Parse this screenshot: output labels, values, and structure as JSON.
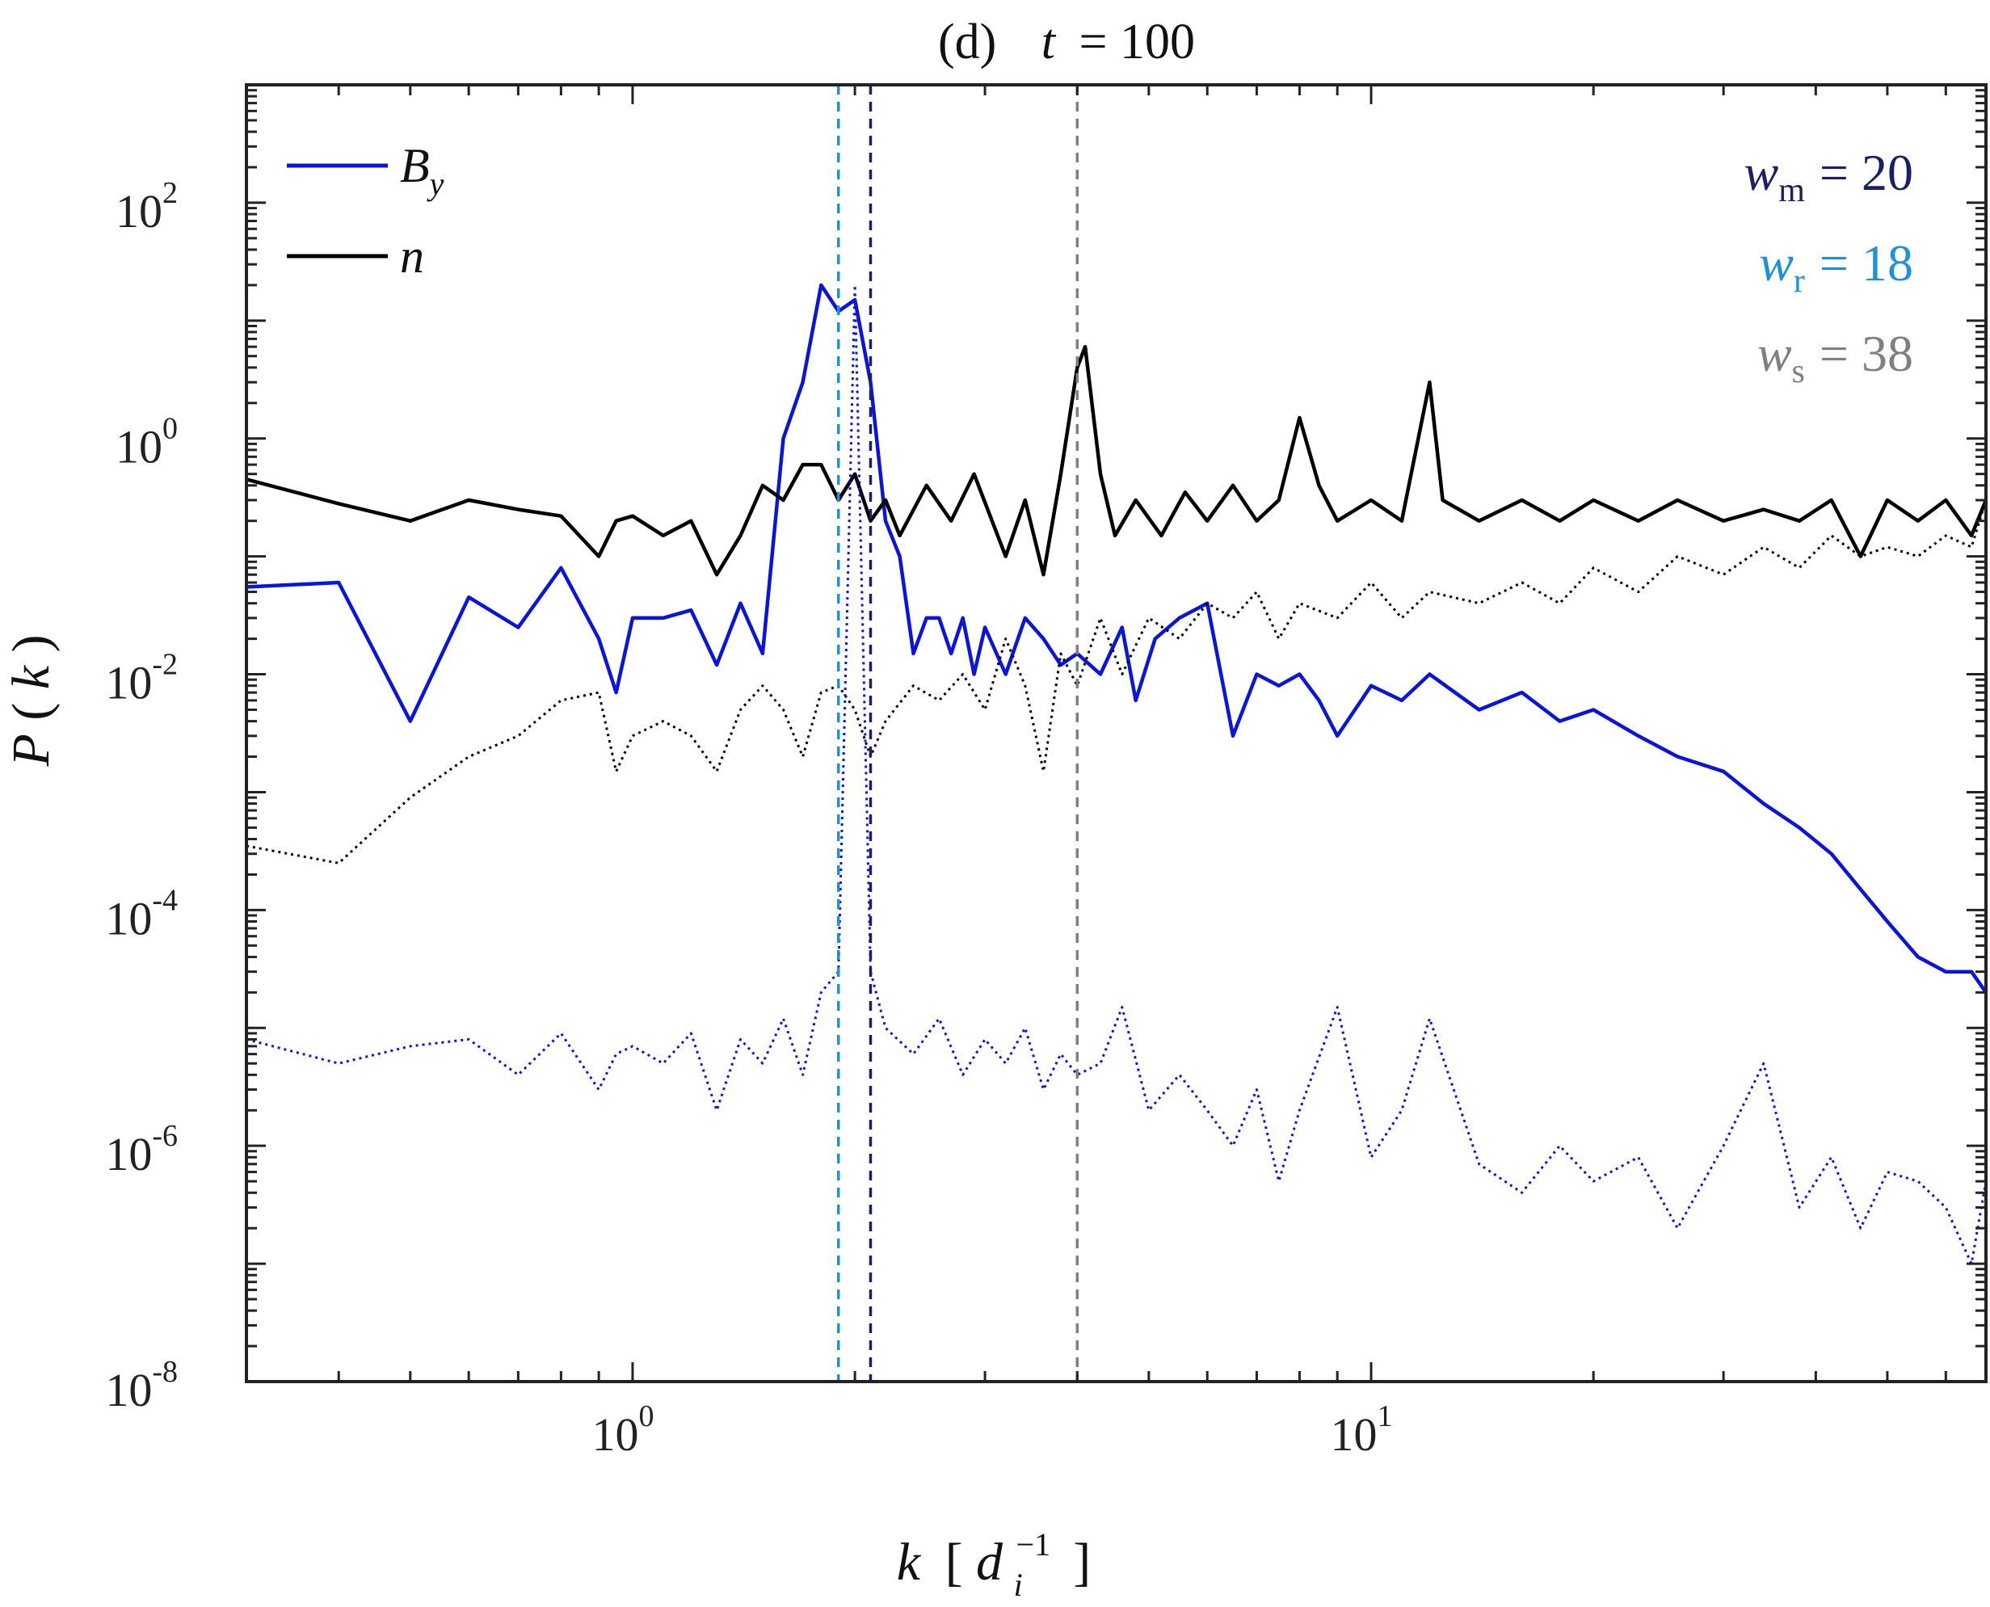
{
  "chart_data": {
    "type": "line",
    "title": "(d)   t = 100",
    "title_parts": {
      "panel": "(d)",
      "var": "t",
      "eq": "= 100"
    },
    "xlabel": "k [d_i^-1]",
    "xlabel_parts": {
      "var": "k",
      "inner": "d",
      "sub": "i",
      "sup": "−1"
    },
    "ylabel": "P(k)",
    "ylabel_parts": {
      "var": "P",
      "arg": "k"
    },
    "x_scale": "log",
    "y_scale": "log",
    "xlim": [
      0.3,
      68
    ],
    "ylim": [
      1e-08,
      1000
    ],
    "x_ticks": [
      {
        "value": 1,
        "base": "10",
        "exp": "0"
      },
      {
        "value": 10,
        "base": "10",
        "exp": "1"
      }
    ],
    "y_ticks": [
      {
        "value": 100,
        "base": "10",
        "exp": "2"
      },
      {
        "value": 1,
        "base": "10",
        "exp": "0"
      },
      {
        "value": 0.01,
        "base": "10",
        "exp": "-2"
      },
      {
        "value": 0.0001,
        "base": "10",
        "exp": "-4"
      },
      {
        "value": 1e-06,
        "base": "10",
        "exp": "-6"
      },
      {
        "value": 1e-08,
        "base": "10",
        "exp": "-8"
      }
    ],
    "grid": false,
    "legend": {
      "position": "top-left",
      "entries": [
        {
          "label": "B",
          "sub": "y",
          "color": "#0a14e0"
        },
        {
          "label": "n",
          "sub": "",
          "color": "#000000"
        }
      ]
    },
    "annotations": [
      {
        "var": "w",
        "sub": "m",
        "eq": "= 20",
        "color": "#1a1f66"
      },
      {
        "var": "w",
        "sub": "r",
        "eq": "= 18",
        "color": "#1e90e0"
      },
      {
        "var": "w",
        "sub": "s",
        "eq": "= 38",
        "color": "#808080"
      }
    ],
    "vlines": [
      {
        "x": 1.9,
        "color": "#1e90e0",
        "style": "dashed"
      },
      {
        "x": 2.1,
        "color": "#1a1f66",
        "style": "dashed"
      },
      {
        "x": 4.0,
        "color": "#808080",
        "style": "dashed"
      }
    ],
    "series": [
      {
        "name": "B_y",
        "color": "#0a14e0",
        "style": "solid",
        "points": [
          [
            0.3,
            0.055
          ],
          [
            0.4,
            0.06
          ],
          [
            0.5,
            0.004
          ],
          [
            0.6,
            0.045
          ],
          [
            0.7,
            0.025
          ],
          [
            0.8,
            0.08
          ],
          [
            0.9,
            0.02
          ],
          [
            0.95,
            0.007
          ],
          [
            1.0,
            0.03
          ],
          [
            1.1,
            0.03
          ],
          [
            1.2,
            0.035
          ],
          [
            1.3,
            0.012
          ],
          [
            1.4,
            0.04
          ],
          [
            1.5,
            0.015
          ],
          [
            1.6,
            1.0
          ],
          [
            1.7,
            3.0
          ],
          [
            1.8,
            20.0
          ],
          [
            1.9,
            12.0
          ],
          [
            2.0,
            15.0
          ],
          [
            2.1,
            3.0
          ],
          [
            2.2,
            0.2
          ],
          [
            2.3,
            0.1
          ],
          [
            2.4,
            0.015
          ],
          [
            2.5,
            0.03
          ],
          [
            2.6,
            0.03
          ],
          [
            2.7,
            0.015
          ],
          [
            2.8,
            0.03
          ],
          [
            2.9,
            0.01
          ],
          [
            3.0,
            0.025
          ],
          [
            3.2,
            0.01
          ],
          [
            3.4,
            0.03
          ],
          [
            3.6,
            0.02
          ],
          [
            3.8,
            0.012
          ],
          [
            4.0,
            0.015
          ],
          [
            4.3,
            0.01
          ],
          [
            4.6,
            0.025
          ],
          [
            4.8,
            0.006
          ],
          [
            5.1,
            0.02
          ],
          [
            5.5,
            0.03
          ],
          [
            6.0,
            0.04
          ],
          [
            6.5,
            0.003
          ],
          [
            7.0,
            0.01
          ],
          [
            7.5,
            0.008
          ],
          [
            8.0,
            0.01
          ],
          [
            8.5,
            0.006
          ],
          [
            9.0,
            0.003
          ],
          [
            10.0,
            0.008
          ],
          [
            11.0,
            0.006
          ],
          [
            12.0,
            0.01
          ],
          [
            14.0,
            0.005
          ],
          [
            16.0,
            0.007
          ],
          [
            18.0,
            0.004
          ],
          [
            20.0,
            0.005
          ],
          [
            23.0,
            0.003
          ],
          [
            26.0,
            0.002
          ],
          [
            30.0,
            0.0015
          ],
          [
            34.0,
            0.0008
          ],
          [
            38.0,
            0.0005
          ],
          [
            42.0,
            0.0003
          ],
          [
            46.0,
            0.00015
          ],
          [
            50.0,
            8e-05
          ],
          [
            55.0,
            4e-05
          ],
          [
            60.0,
            3e-05
          ],
          [
            65.0,
            3e-05
          ],
          [
            68.0,
            2e-05
          ]
        ]
      },
      {
        "name": "n",
        "color": "#000000",
        "style": "solid",
        "points": [
          [
            0.3,
            0.45
          ],
          [
            0.4,
            0.28
          ],
          [
            0.5,
            0.2
          ],
          [
            0.6,
            0.3
          ],
          [
            0.7,
            0.25
          ],
          [
            0.8,
            0.22
          ],
          [
            0.9,
            0.1
          ],
          [
            0.95,
            0.2
          ],
          [
            1.0,
            0.22
          ],
          [
            1.1,
            0.15
          ],
          [
            1.2,
            0.2
          ],
          [
            1.3,
            0.07
          ],
          [
            1.4,
            0.15
          ],
          [
            1.5,
            0.4
          ],
          [
            1.6,
            0.3
          ],
          [
            1.7,
            0.6
          ],
          [
            1.8,
            0.6
          ],
          [
            1.9,
            0.3
          ],
          [
            2.0,
            0.5
          ],
          [
            2.1,
            0.2
          ],
          [
            2.2,
            0.3
          ],
          [
            2.3,
            0.15
          ],
          [
            2.5,
            0.4
          ],
          [
            2.7,
            0.2
          ],
          [
            2.9,
            0.5
          ],
          [
            3.2,
            0.1
          ],
          [
            3.4,
            0.3
          ],
          [
            3.6,
            0.07
          ],
          [
            3.8,
            0.5
          ],
          [
            4.0,
            4.0
          ],
          [
            4.1,
            6.0
          ],
          [
            4.3,
            0.5
          ],
          [
            4.5,
            0.15
          ],
          [
            4.8,
            0.3
          ],
          [
            5.2,
            0.15
          ],
          [
            5.6,
            0.35
          ],
          [
            6.0,
            0.2
          ],
          [
            6.5,
            0.4
          ],
          [
            7.0,
            0.2
          ],
          [
            7.5,
            0.3
          ],
          [
            8.0,
            1.5
          ],
          [
            8.5,
            0.4
          ],
          [
            9.0,
            0.2
          ],
          [
            10.0,
            0.3
          ],
          [
            11.0,
            0.2
          ],
          [
            12.0,
            3.0
          ],
          [
            12.5,
            0.3
          ],
          [
            14.0,
            0.2
          ],
          [
            16.0,
            0.3
          ],
          [
            18.0,
            0.2
          ],
          [
            20.0,
            0.3
          ],
          [
            23.0,
            0.2
          ],
          [
            26.0,
            0.3
          ],
          [
            30.0,
            0.2
          ],
          [
            34.0,
            0.25
          ],
          [
            38.0,
            0.2
          ],
          [
            42.0,
            0.3
          ],
          [
            46.0,
            0.1
          ],
          [
            50.0,
            0.3
          ],
          [
            55.0,
            0.2
          ],
          [
            60.0,
            0.3
          ],
          [
            65.0,
            0.15
          ],
          [
            68.0,
            0.3
          ]
        ]
      },
      {
        "name": "n (dotted)",
        "color": "#000000",
        "style": "dotted",
        "points": [
          [
            0.3,
            0.00035
          ],
          [
            0.4,
            0.00025
          ],
          [
            0.5,
            0.0009
          ],
          [
            0.6,
            0.002
          ],
          [
            0.7,
            0.003
          ],
          [
            0.8,
            0.006
          ],
          [
            0.9,
            0.007
          ],
          [
            0.95,
            0.0015
          ],
          [
            1.0,
            0.003
          ],
          [
            1.1,
            0.004
          ],
          [
            1.2,
            0.003
          ],
          [
            1.3,
            0.0015
          ],
          [
            1.4,
            0.005
          ],
          [
            1.5,
            0.008
          ],
          [
            1.6,
            0.005
          ],
          [
            1.7,
            0.002
          ],
          [
            1.8,
            0.007
          ],
          [
            1.9,
            0.008
          ],
          [
            2.0,
            0.005
          ],
          [
            2.1,
            0.002
          ],
          [
            2.2,
            0.004
          ],
          [
            2.4,
            0.008
          ],
          [
            2.6,
            0.006
          ],
          [
            2.8,
            0.01
          ],
          [
            3.0,
            0.005
          ],
          [
            3.2,
            0.02
          ],
          [
            3.4,
            0.008
          ],
          [
            3.6,
            0.0015
          ],
          [
            3.8,
            0.015
          ],
          [
            4.0,
            0.008
          ],
          [
            4.3,
            0.03
          ],
          [
            4.6,
            0.01
          ],
          [
            5.0,
            0.03
          ],
          [
            5.5,
            0.02
          ],
          [
            6.0,
            0.04
          ],
          [
            6.5,
            0.03
          ],
          [
            7.0,
            0.05
          ],
          [
            7.5,
            0.02
          ],
          [
            8.0,
            0.04
          ],
          [
            9.0,
            0.03
          ],
          [
            10.0,
            0.06
          ],
          [
            11.0,
            0.03
          ],
          [
            12.0,
            0.05
          ],
          [
            14.0,
            0.04
          ],
          [
            16.0,
            0.06
          ],
          [
            18.0,
            0.04
          ],
          [
            20.0,
            0.08
          ],
          [
            23.0,
            0.05
          ],
          [
            26.0,
            0.1
          ],
          [
            30.0,
            0.07
          ],
          [
            34.0,
            0.12
          ],
          [
            38.0,
            0.08
          ],
          [
            42.0,
            0.15
          ],
          [
            46.0,
            0.1
          ],
          [
            50.0,
            0.12
          ],
          [
            55.0,
            0.1
          ],
          [
            60.0,
            0.15
          ],
          [
            65.0,
            0.12
          ],
          [
            68.0,
            0.3
          ]
        ]
      },
      {
        "name": "B_y (dotted)",
        "color": "#0a14e0",
        "style": "dotted",
        "points": [
          [
            0.3,
            8e-06
          ],
          [
            0.4,
            5e-06
          ],
          [
            0.5,
            7e-06
          ],
          [
            0.6,
            8e-06
          ],
          [
            0.7,
            4e-06
          ],
          [
            0.8,
            9e-06
          ],
          [
            0.9,
            3e-06
          ],
          [
            0.95,
            6e-06
          ],
          [
            1.0,
            7e-06
          ],
          [
            1.1,
            5e-06
          ],
          [
            1.2,
            9e-06
          ],
          [
            1.3,
            2e-06
          ],
          [
            1.4,
            8e-06
          ],
          [
            1.5,
            5e-06
          ],
          [
            1.6,
            1.2e-05
          ],
          [
            1.7,
            4e-06
          ],
          [
            1.8,
            2e-05
          ],
          [
            1.9,
            3e-05
          ],
          [
            2.0,
            20.0
          ],
          [
            2.1,
            3e-05
          ],
          [
            2.2,
            1e-05
          ],
          [
            2.4,
            6e-06
          ],
          [
            2.6,
            1.2e-05
          ],
          [
            2.8,
            4e-06
          ],
          [
            3.0,
            8e-06
          ],
          [
            3.2,
            5e-06
          ],
          [
            3.4,
            1e-05
          ],
          [
            3.6,
            3e-06
          ],
          [
            3.8,
            6e-06
          ],
          [
            4.0,
            4e-06
          ],
          [
            4.3,
            5e-06
          ],
          [
            4.6,
            1.5e-05
          ],
          [
            5.0,
            2e-06
          ],
          [
            5.5,
            4e-06
          ],
          [
            6.0,
            2e-06
          ],
          [
            6.5,
            1e-06
          ],
          [
            7.0,
            3e-06
          ],
          [
            7.5,
            5e-07
          ],
          [
            8.0,
            2e-06
          ],
          [
            9.0,
            1.5e-05
          ],
          [
            10.0,
            8e-07
          ],
          [
            11.0,
            2e-06
          ],
          [
            12.0,
            1.2e-05
          ],
          [
            14.0,
            7e-07
          ],
          [
            16.0,
            4e-07
          ],
          [
            18.0,
            1e-06
          ],
          [
            20.0,
            5e-07
          ],
          [
            23.0,
            8e-07
          ],
          [
            26.0,
            2e-07
          ],
          [
            30.0,
            1e-06
          ],
          [
            34.0,
            5e-06
          ],
          [
            38.0,
            3e-07
          ],
          [
            42.0,
            8e-07
          ],
          [
            46.0,
            2e-07
          ],
          [
            50.0,
            6e-07
          ],
          [
            55.0,
            5e-07
          ],
          [
            60.0,
            3e-07
          ],
          [
            65.0,
            1e-07
          ],
          [
            68.0,
            5e-07
          ]
        ]
      }
    ]
  }
}
